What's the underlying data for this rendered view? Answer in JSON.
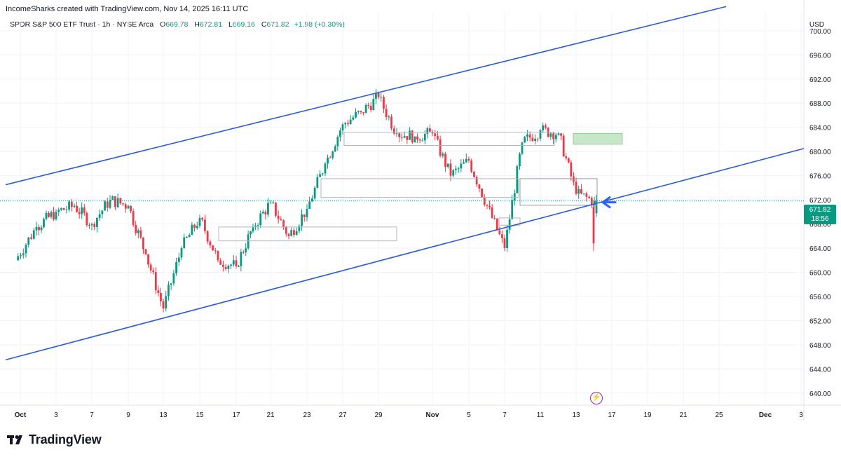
{
  "header": {
    "credit": "IncomeSharks created with TradingView.com, Nov 14, 2025 16:11 UTC",
    "symbol": "SPDR S&P 500 ETF Trust · 1h · NYSE Arca",
    "open_label": "O",
    "open": "669.78",
    "high_label": "H",
    "high": "672.81",
    "low_label": "L",
    "low": "669.16",
    "close_label": "C",
    "close": "671.82",
    "change": "+1.98 (+0.30%)"
  },
  "currency": "USD",
  "last_price": {
    "price": "671.82",
    "countdown": "18:56"
  },
  "brand": {
    "name": "TradingView"
  },
  "icons": {
    "event": "lightning-icon",
    "logo": "tradingview-logo-icon"
  },
  "colors": {
    "up": "#089981",
    "down": "#f23645",
    "channel": "#2e5bd6",
    "arrow": "#2962ff",
    "box": "#b2b5be",
    "supply_zone": "#c8e6c9",
    "grid": "#f0f3fa"
  },
  "chart_data": {
    "type": "candlestick",
    "y_axis": {
      "ylim": [
        638,
        703
      ],
      "ticks": [
        "640.00",
        "644.00",
        "648.00",
        "652.00",
        "656.00",
        "660.00",
        "664.00",
        "668.00",
        "672.00",
        "676.00",
        "680.00",
        "684.00",
        "688.00",
        "692.00",
        "696.00",
        "700.00"
      ]
    },
    "x_axis": {
      "ticks": [
        "Oct",
        "3",
        "7",
        "9",
        "13",
        "15",
        "17",
        "21",
        "23",
        "27",
        "29",
        "Nov",
        "5",
        "7",
        "11",
        "13",
        "17",
        "19",
        "21",
        "25",
        "Dec",
        "3"
      ]
    },
    "price_path": [
      [
        "Oct 1",
        662.0
      ],
      [
        "Oct 2",
        667.5
      ],
      [
        "Oct 3",
        670.0
      ],
      [
        "Oct 6",
        671.0
      ],
      [
        "Oct 7",
        668.0
      ],
      [
        "Oct 8",
        672.0
      ],
      [
        "Oct 9",
        671.0
      ],
      [
        "Oct 10",
        663.0
      ],
      [
        "Oct 13",
        654.0
      ],
      [
        "Oct 14",
        664.0
      ],
      [
        "Oct 15",
        669.0
      ],
      [
        "Oct 16",
        662.0
      ],
      [
        "Oct 17",
        661.0
      ],
      [
        "Oct 20",
        667.5
      ],
      [
        "Oct 21",
        671.5
      ],
      [
        "Oct 22",
        666.0
      ],
      [
        "Oct 23",
        670.5
      ],
      [
        "Oct 24",
        678.0
      ],
      [
        "Oct 27",
        684.5
      ],
      [
        "Oct 28",
        686.5
      ],
      [
        "Oct 29",
        689.0
      ],
      [
        "Oct 30",
        683.0
      ],
      [
        "Oct 31",
        682.5
      ],
      [
        "Nov 3",
        683.0
      ],
      [
        "Nov 4",
        676.0
      ],
      [
        "Nov 5",
        678.5
      ],
      [
        "Nov 6",
        671.0
      ],
      [
        "Nov 7",
        664.0
      ],
      [
        "Nov 10",
        681.5
      ],
      [
        "Nov 11",
        683.5
      ],
      [
        "Nov 12",
        683.0
      ],
      [
        "Nov 13",
        673.0
      ],
      [
        "Nov 14",
        671.82
      ]
    ],
    "last_price": 671.82,
    "last_price_low": 663.5,
    "channel_lines": [
      {
        "name": "upper",
        "from": [
          "Sep 30",
          674.5
        ],
        "to": [
          "Nov 26",
          704.0
        ]
      },
      {
        "name": "lower",
        "from": [
          "Sep 30",
          645.5
        ],
        "to": [
          "Dec 4",
          680.5
        ]
      }
    ],
    "zones": [
      {
        "type": "supply",
        "top": 683.0,
        "bottom": 681.2
      },
      {
        "type": "range",
        "top": 675.5,
        "bottom": 671.1
      }
    ],
    "annotation": {
      "type": "arrow",
      "points_to": "lower channel at last price"
    }
  }
}
